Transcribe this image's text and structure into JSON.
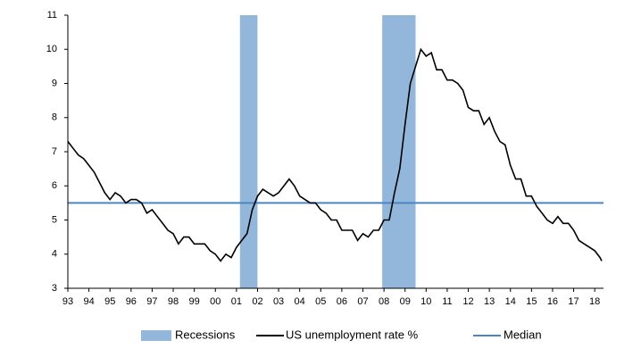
{
  "chart_data": {
    "type": "line",
    "x": [
      0,
      3,
      6,
      9,
      12,
      15,
      18,
      21,
      24,
      27,
      30,
      33,
      36,
      39,
      42,
      45,
      48,
      51,
      54,
      57,
      60,
      63,
      66,
      69,
      72,
      75,
      78,
      81,
      84,
      87,
      90,
      93,
      96,
      99,
      102,
      105,
      108,
      111,
      114,
      117,
      120,
      123,
      126,
      129,
      132,
      135,
      138,
      141,
      144,
      147,
      150,
      153,
      156,
      159,
      162,
      165,
      168,
      171,
      174,
      177,
      180,
      183,
      186,
      189,
      192,
      195,
      198,
      201,
      204,
      207,
      210,
      213,
      216,
      219,
      222,
      225,
      228,
      231,
      234,
      237,
      240,
      243,
      246,
      249,
      252,
      255,
      258,
      261,
      264,
      267,
      270,
      273,
      276,
      279,
      282,
      285,
      288,
      291,
      294,
      297,
      300,
      303,
      304
    ],
    "series": [
      {
        "name": "US unemployment rate %",
        "color": "#000000",
        "values": [
          7.3,
          7.1,
          6.9,
          6.8,
          6.6,
          6.4,
          6.1,
          5.8,
          5.6,
          5.8,
          5.7,
          5.5,
          5.6,
          5.6,
          5.5,
          5.2,
          5.3,
          5.1,
          4.9,
          4.7,
          4.6,
          4.3,
          4.5,
          4.5,
          4.3,
          4.3,
          4.3,
          4.1,
          4.0,
          3.8,
          4.0,
          3.9,
          4.2,
          4.4,
          4.6,
          5.3,
          5.7,
          5.9,
          5.8,
          5.7,
          5.8,
          6.0,
          6.2,
          6.0,
          5.7,
          5.6,
          5.5,
          5.5,
          5.3,
          5.2,
          5.0,
          5.0,
          4.7,
          4.7,
          4.7,
          4.4,
          4.6,
          4.5,
          4.7,
          4.7,
          5.0,
          5.0,
          5.8,
          6.5,
          7.8,
          9.0,
          9.5,
          10.0,
          9.8,
          9.9,
          9.4,
          9.4,
          9.1,
          9.1,
          9.0,
          8.8,
          8.3,
          8.2,
          8.2,
          7.8,
          8.0,
          7.6,
          7.3,
          7.2,
          6.6,
          6.2,
          6.2,
          5.7,
          5.7,
          5.4,
          5.2,
          5.0,
          4.9,
          5.1,
          4.9,
          4.9,
          4.7,
          4.4,
          4.3,
          4.2,
          4.1,
          3.9,
          3.8
        ]
      }
    ],
    "recessions": {
      "name": "Recessions",
      "color": "#93b7da",
      "spans": [
        [
          98,
          108
        ],
        [
          179,
          198
        ]
      ]
    },
    "median": {
      "name": "Median",
      "value": 5.5,
      "color": "#4a86c5"
    },
    "xlim": [
      0,
      305
    ],
    "xticks": [
      {
        "value": 0,
        "label": "93"
      },
      {
        "value": 12,
        "label": "94"
      },
      {
        "value": 24,
        "label": "95"
      },
      {
        "value": 36,
        "label": "96"
      },
      {
        "value": 48,
        "label": "97"
      },
      {
        "value": 60,
        "label": "98"
      },
      {
        "value": 72,
        "label": "99"
      },
      {
        "value": 84,
        "label": "00"
      },
      {
        "value": 96,
        "label": "01"
      },
      {
        "value": 108,
        "label": "02"
      },
      {
        "value": 120,
        "label": "03"
      },
      {
        "value": 132,
        "label": "04"
      },
      {
        "value": 144,
        "label": "05"
      },
      {
        "value": 156,
        "label": "06"
      },
      {
        "value": 168,
        "label": "07"
      },
      {
        "value": 180,
        "label": "08"
      },
      {
        "value": 192,
        "label": "09"
      },
      {
        "value": 204,
        "label": "10"
      },
      {
        "value": 216,
        "label": "11"
      },
      {
        "value": 228,
        "label": "12"
      },
      {
        "value": 240,
        "label": "13"
      },
      {
        "value": 252,
        "label": "14"
      },
      {
        "value": 264,
        "label": "15"
      },
      {
        "value": 276,
        "label": "16"
      },
      {
        "value": 288,
        "label": "17"
      },
      {
        "value": 300,
        "label": "18"
      }
    ],
    "ylim": [
      3,
      11
    ],
    "yticks": [
      3,
      4,
      5,
      6,
      7,
      8,
      9,
      10,
      11
    ],
    "legend": "bottom"
  }
}
